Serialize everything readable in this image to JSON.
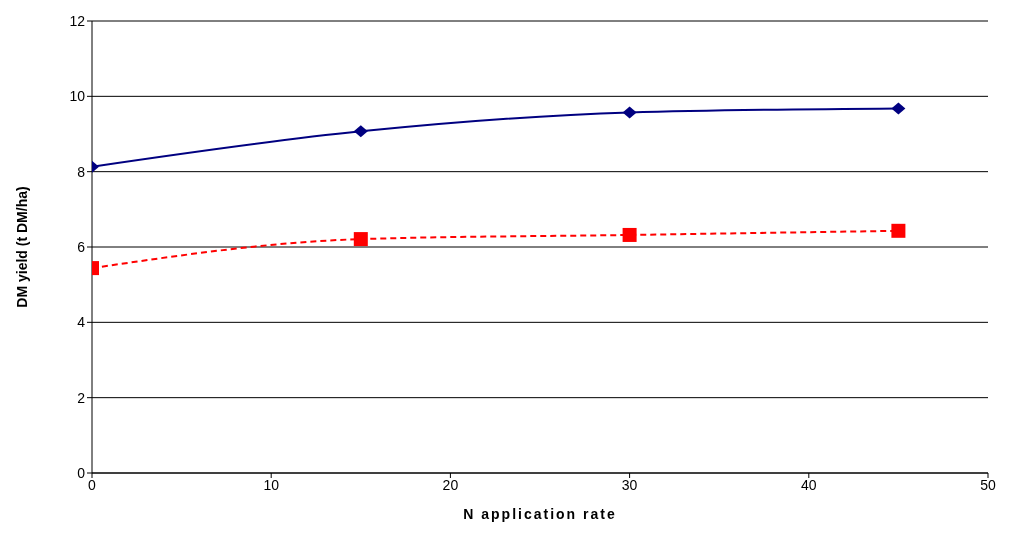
{
  "chart_data": {
    "type": "line",
    "xlabel": "N application rate",
    "ylabel": "DM yield (t DM/ha)",
    "x": [
      0,
      15,
      30,
      45
    ],
    "series": [
      {
        "color": "#000080",
        "values": [
          8.13,
          9.07,
          9.57,
          9.68
        ],
        "marker": "diamond",
        "line_style": "solid"
      },
      {
        "color": "#ff0000",
        "values": [
          5.44,
          6.21,
          6.32,
          6.43
        ],
        "marker": "square",
        "line_style": "dashed"
      }
    ],
    "xlim": [
      0,
      50
    ],
    "xticks": [
      0,
      10,
      20,
      30,
      40,
      50
    ],
    "ylim": [
      0,
      12
    ],
    "yticks": [
      0,
      2,
      4,
      6,
      8,
      10,
      12
    ],
    "grid": "y",
    "legend": false
  }
}
